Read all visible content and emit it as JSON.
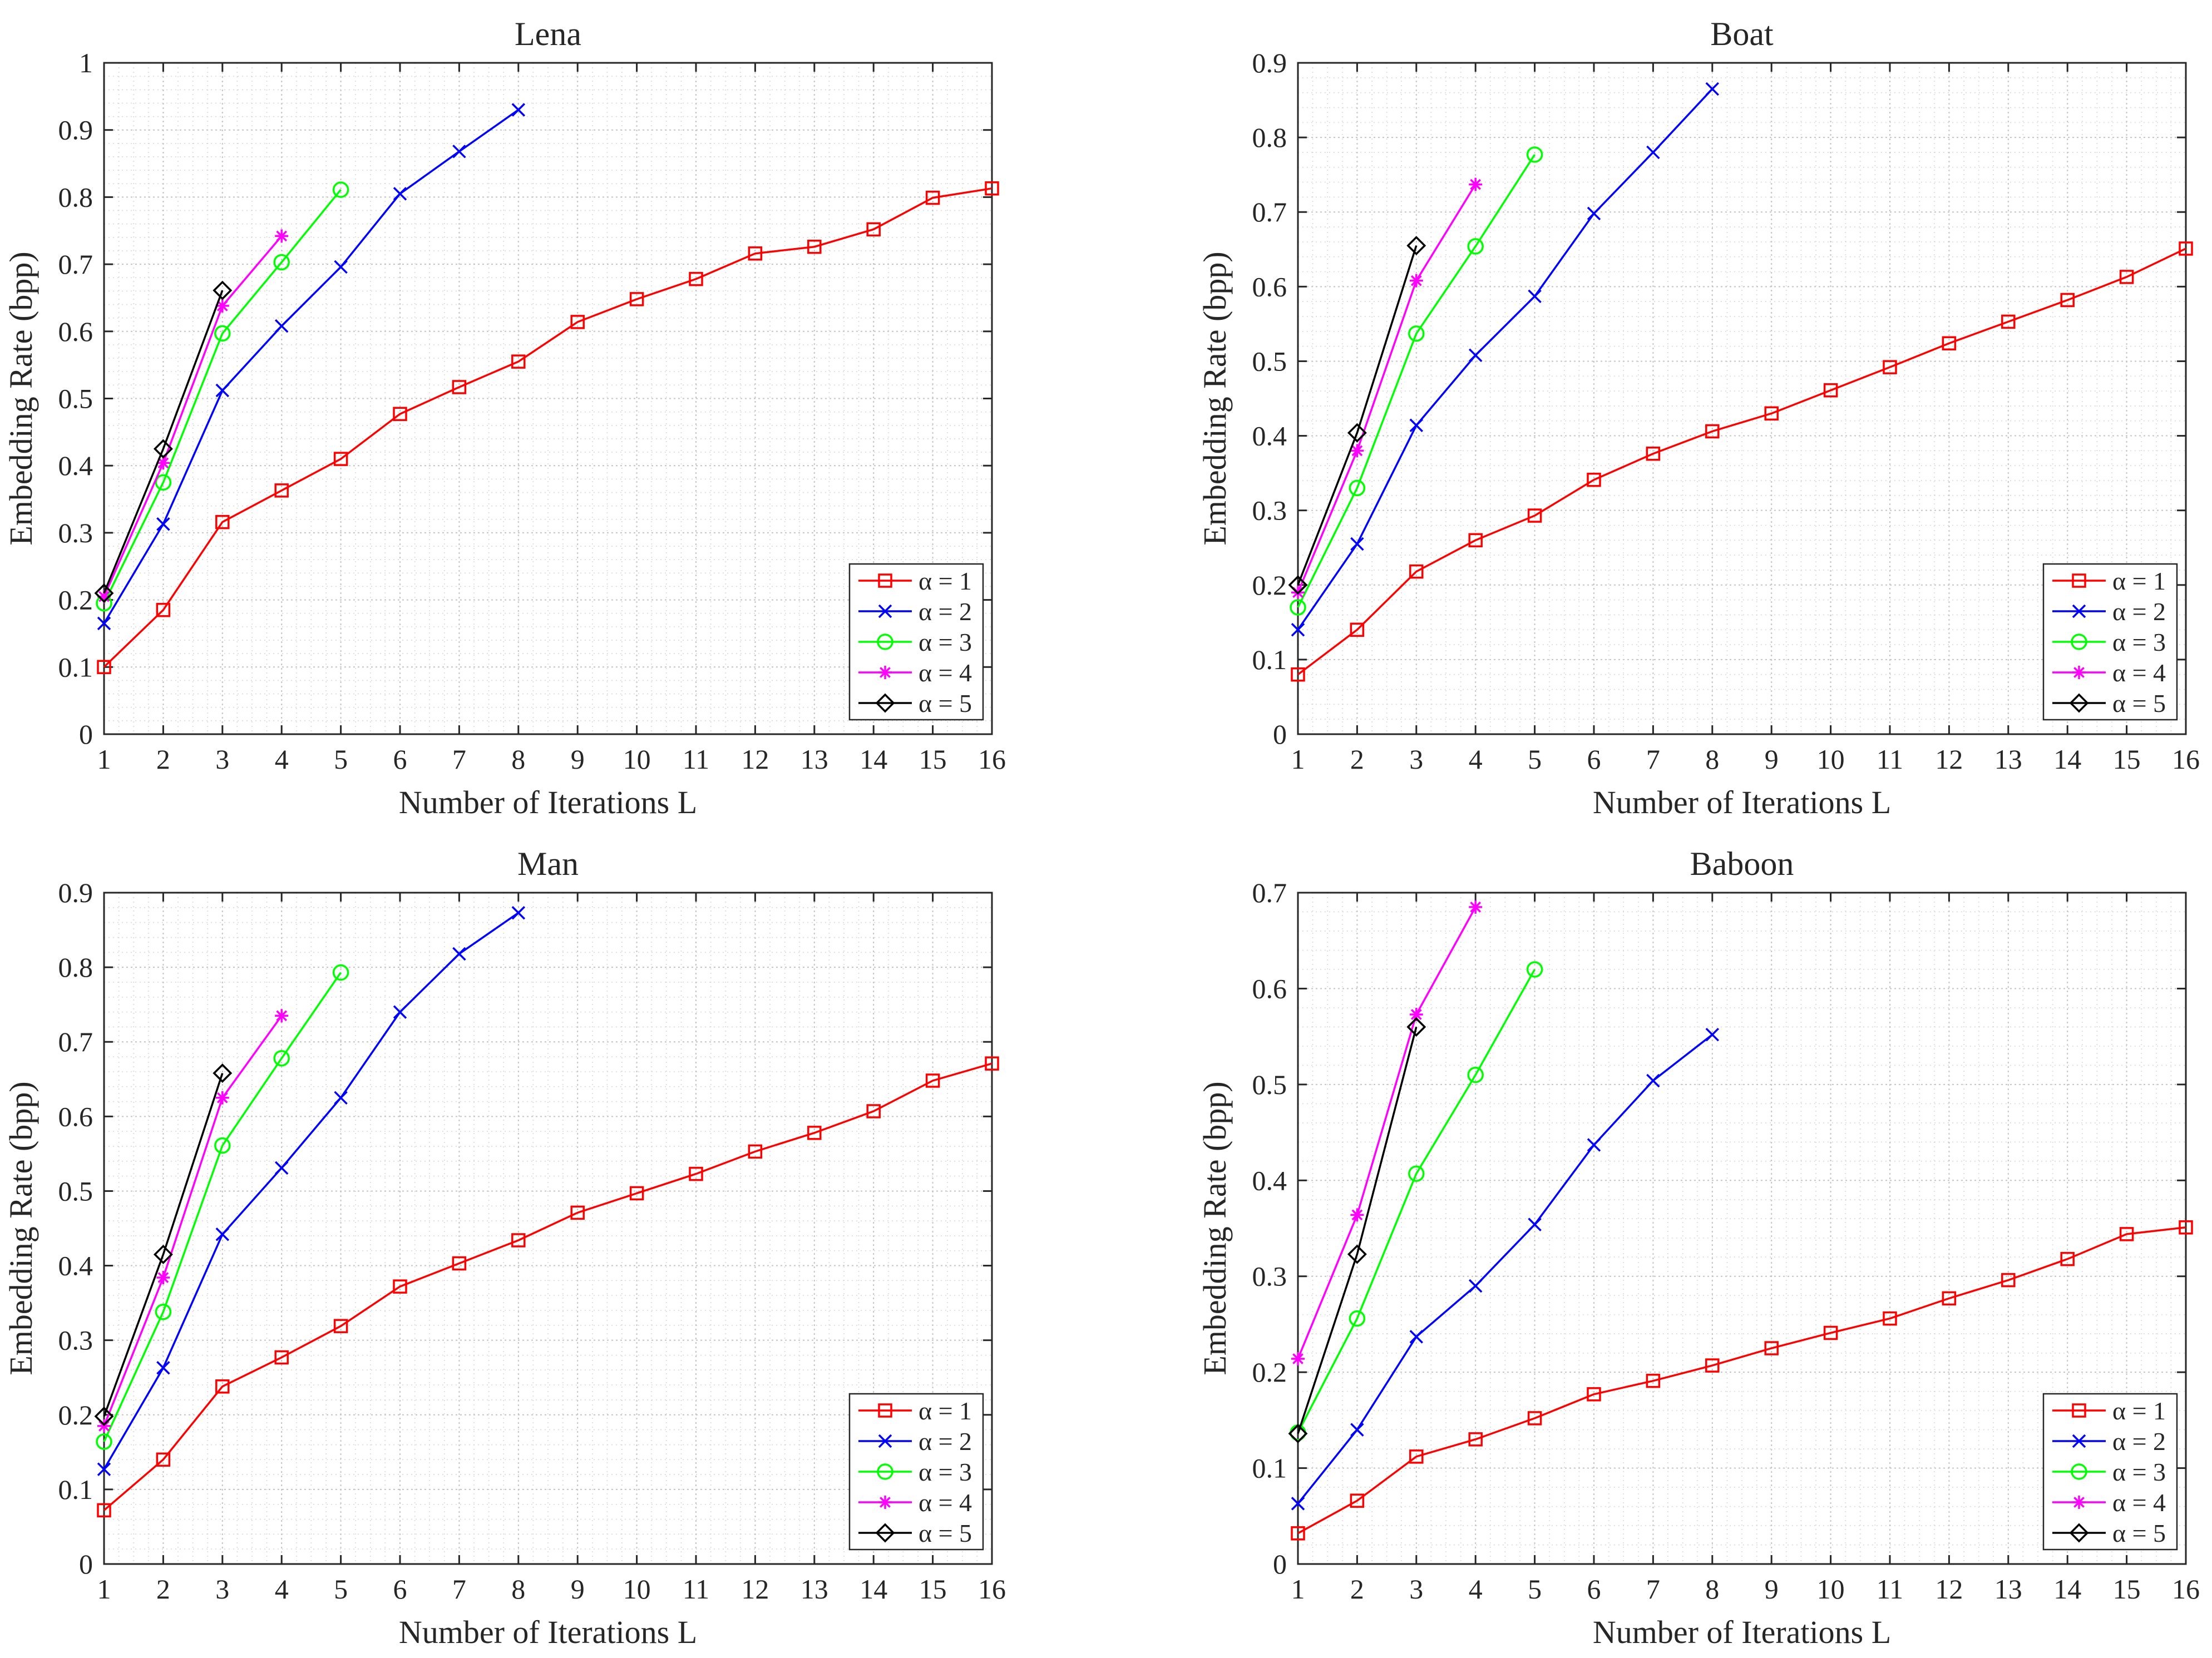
{
  "figure_caption": "",
  "chart_data": [
    {
      "type": "line",
      "title": "Lena",
      "xlabel": "Number of Iterations L",
      "ylabel": "Embedding Rate (bpp)",
      "xlim": [
        1,
        16
      ],
      "ylim": [
        0,
        1
      ],
      "xticks": [
        1,
        2,
        3,
        4,
        5,
        6,
        7,
        8,
        9,
        10,
        11,
        12,
        13,
        14,
        15,
        16
      ],
      "yticks": [
        0,
        0.1,
        0.2,
        0.3,
        0.4,
        0.5,
        0.6,
        0.7,
        0.8,
        0.9,
        1
      ],
      "ytick_labels": [
        "0",
        "0.1",
        "0.2",
        "0.3",
        "0.4",
        "0.5",
        "0.6",
        "0.7",
        "0.8",
        "0.9",
        "1"
      ],
      "grid": true,
      "legend_position": "bottom-right",
      "series": [
        {
          "name": "α = 1",
          "color": "#ff0000",
          "marker": "square",
          "x": [
            1,
            2,
            3,
            4,
            5,
            6,
            7,
            8,
            9,
            10,
            11,
            12,
            13,
            14,
            15,
            16
          ],
          "values": [
            0.1,
            0.185,
            0.316,
            0.363,
            0.41,
            0.477,
            0.517,
            0.555,
            0.614,
            0.648,
            0.678,
            0.716,
            0.726,
            0.752,
            0.799,
            0.813
          ]
        },
        {
          "name": "α = 2",
          "color": "#0000ff",
          "marker": "x",
          "x": [
            1,
            2,
            3,
            4,
            5,
            6,
            7,
            8
          ],
          "values": [
            0.165,
            0.313,
            0.512,
            0.608,
            0.696,
            0.805,
            0.868,
            0.93
          ]
        },
        {
          "name": "α = 3",
          "color": "#00ff00",
          "marker": "circle",
          "x": [
            1,
            2,
            3,
            4,
            5
          ],
          "values": [
            0.195,
            0.375,
            0.597,
            0.703,
            0.811
          ]
        },
        {
          "name": "α = 4",
          "color": "#ff00ff",
          "marker": "star",
          "x": [
            1,
            2,
            3,
            4
          ],
          "values": [
            0.205,
            0.404,
            0.638,
            0.742
          ]
        },
        {
          "name": "α = 5",
          "color": "#000000",
          "marker": "diamond",
          "x": [
            1,
            2,
            3
          ],
          "values": [
            0.21,
            0.425,
            0.661
          ]
        }
      ]
    },
    {
      "type": "line",
      "title": "Boat",
      "xlabel": "Number of Iterations L",
      "ylabel": "Embedding Rate (bpp)",
      "xlim": [
        1,
        16
      ],
      "ylim": [
        0,
        0.9
      ],
      "xticks": [
        1,
        2,
        3,
        4,
        5,
        6,
        7,
        8,
        9,
        10,
        11,
        12,
        13,
        14,
        15,
        16
      ],
      "yticks": [
        0,
        0.1,
        0.2,
        0.3,
        0.4,
        0.5,
        0.6,
        0.7,
        0.8,
        0.9
      ],
      "ytick_labels": [
        "0",
        "0.1",
        "0.2",
        "0.3",
        "0.4",
        "0.5",
        "0.6",
        "0.7",
        "0.8",
        "0.9"
      ],
      "grid": true,
      "legend_position": "bottom-right",
      "series": [
        {
          "name": "α = 1",
          "color": "#ff0000",
          "marker": "square",
          "x": [
            1,
            2,
            3,
            4,
            5,
            6,
            7,
            8,
            9,
            10,
            11,
            12,
            13,
            14,
            15,
            16
          ],
          "values": [
            0.08,
            0.14,
            0.218,
            0.26,
            0.293,
            0.341,
            0.376,
            0.406,
            0.43,
            0.461,
            0.492,
            0.524,
            0.553,
            0.582,
            0.613,
            0.651
          ]
        },
        {
          "name": "α = 2",
          "color": "#0000ff",
          "marker": "x",
          "x": [
            1,
            2,
            3,
            4,
            5,
            6,
            7,
            8
          ],
          "values": [
            0.14,
            0.255,
            0.414,
            0.508,
            0.587,
            0.698,
            0.78,
            0.865
          ]
        },
        {
          "name": "α = 3",
          "color": "#00ff00",
          "marker": "circle",
          "x": [
            1,
            2,
            3,
            4,
            5
          ],
          "values": [
            0.17,
            0.33,
            0.537,
            0.654,
            0.777
          ]
        },
        {
          "name": "α = 4",
          "color": "#ff00ff",
          "marker": "star",
          "x": [
            1,
            2,
            3,
            4
          ],
          "values": [
            0.19,
            0.38,
            0.608,
            0.737
          ]
        },
        {
          "name": "α = 5",
          "color": "#000000",
          "marker": "diamond",
          "x": [
            1,
            2,
            3
          ],
          "values": [
            0.2,
            0.404,
            0.655
          ]
        }
      ]
    },
    {
      "type": "line",
      "title": "Man",
      "xlabel": "Number of Iterations L",
      "ylabel": "Embedding Rate (bpp)",
      "xlim": [
        1,
        16
      ],
      "ylim": [
        0,
        0.9
      ],
      "xticks": [
        1,
        2,
        3,
        4,
        5,
        6,
        7,
        8,
        9,
        10,
        11,
        12,
        13,
        14,
        15,
        16
      ],
      "yticks": [
        0,
        0.1,
        0.2,
        0.3,
        0.4,
        0.5,
        0.6,
        0.7,
        0.8,
        0.9
      ],
      "ytick_labels": [
        "0",
        "0.1",
        "0.2",
        "0.3",
        "0.4",
        "0.5",
        "0.6",
        "0.7",
        "0.8",
        "0.9"
      ],
      "grid": true,
      "legend_position": "bottom-right",
      "series": [
        {
          "name": "α = 1",
          "color": "#ff0000",
          "marker": "square",
          "x": [
            1,
            2,
            3,
            4,
            5,
            6,
            7,
            8,
            9,
            10,
            11,
            12,
            13,
            14,
            15,
            16
          ],
          "values": [
            0.072,
            0.14,
            0.238,
            0.277,
            0.319,
            0.372,
            0.403,
            0.434,
            0.471,
            0.497,
            0.523,
            0.553,
            0.578,
            0.607,
            0.648,
            0.671
          ]
        },
        {
          "name": "α = 2",
          "color": "#0000ff",
          "marker": "x",
          "x": [
            1,
            2,
            3,
            4,
            5,
            6,
            7,
            8
          ],
          "values": [
            0.127,
            0.263,
            0.442,
            0.531,
            0.625,
            0.74,
            0.818,
            0.873
          ]
        },
        {
          "name": "α = 3",
          "color": "#00ff00",
          "marker": "circle",
          "x": [
            1,
            2,
            3,
            4,
            5
          ],
          "values": [
            0.164,
            0.338,
            0.561,
            0.678,
            0.793
          ]
        },
        {
          "name": "α = 4",
          "color": "#ff00ff",
          "marker": "star",
          "x": [
            1,
            2,
            3,
            4
          ],
          "values": [
            0.185,
            0.384,
            0.625,
            0.735
          ]
        },
        {
          "name": "α = 5",
          "color": "#000000",
          "marker": "diamond",
          "x": [
            1,
            2,
            3
          ],
          "values": [
            0.198,
            0.415,
            0.658
          ]
        }
      ]
    },
    {
      "type": "line",
      "title": "Baboon",
      "xlabel": "Number of Iterations L",
      "ylabel": "Embedding Rate (bpp)",
      "xlim": [
        1,
        16
      ],
      "ylim": [
        0,
        0.7
      ],
      "xticks": [
        1,
        2,
        3,
        4,
        5,
        6,
        7,
        8,
        9,
        10,
        11,
        12,
        13,
        14,
        15,
        16
      ],
      "yticks": [
        0,
        0.1,
        0.2,
        0.3,
        0.4,
        0.5,
        0.6,
        0.7
      ],
      "ytick_labels": [
        "0",
        "0.1",
        "0.2",
        "0.3",
        "0.4",
        "0.5",
        "0.6",
        "0.7"
      ],
      "grid": true,
      "legend_position": "bottom-right",
      "series": [
        {
          "name": "α = 1",
          "color": "#ff0000",
          "marker": "square",
          "x": [
            1,
            2,
            3,
            4,
            5,
            6,
            7,
            8,
            9,
            10,
            11,
            12,
            13,
            14,
            15,
            16
          ],
          "values": [
            0.032,
            0.066,
            0.112,
            0.13,
            0.152,
            0.177,
            0.191,
            0.207,
            0.225,
            0.241,
            0.256,
            0.277,
            0.296,
            0.318,
            0.344,
            0.351
          ]
        },
        {
          "name": "α = 2",
          "color": "#0000ff",
          "marker": "x",
          "x": [
            1,
            2,
            3,
            4,
            5,
            6,
            7,
            8
          ],
          "values": [
            0.063,
            0.14,
            0.237,
            0.29,
            0.354,
            0.437,
            0.504,
            0.552
          ]
        },
        {
          "name": "α = 3",
          "color": "#00ff00",
          "marker": "circle",
          "x": [
            1,
            2,
            3,
            4,
            5
          ],
          "values": [
            0.137,
            0.256,
            0.407,
            0.51,
            0.62
          ]
        },
        {
          "name": "α = 4",
          "color": "#ff00ff",
          "marker": "star",
          "x": [
            1,
            2,
            3,
            4
          ],
          "values": [
            0.214,
            0.364,
            0.573,
            0.685
          ]
        },
        {
          "name": "α = 5",
          "color": "#000000",
          "marker": "diamond",
          "x": [
            1,
            2,
            3
          ],
          "values": [
            0.136,
            0.323,
            0.56
          ]
        }
      ]
    }
  ]
}
